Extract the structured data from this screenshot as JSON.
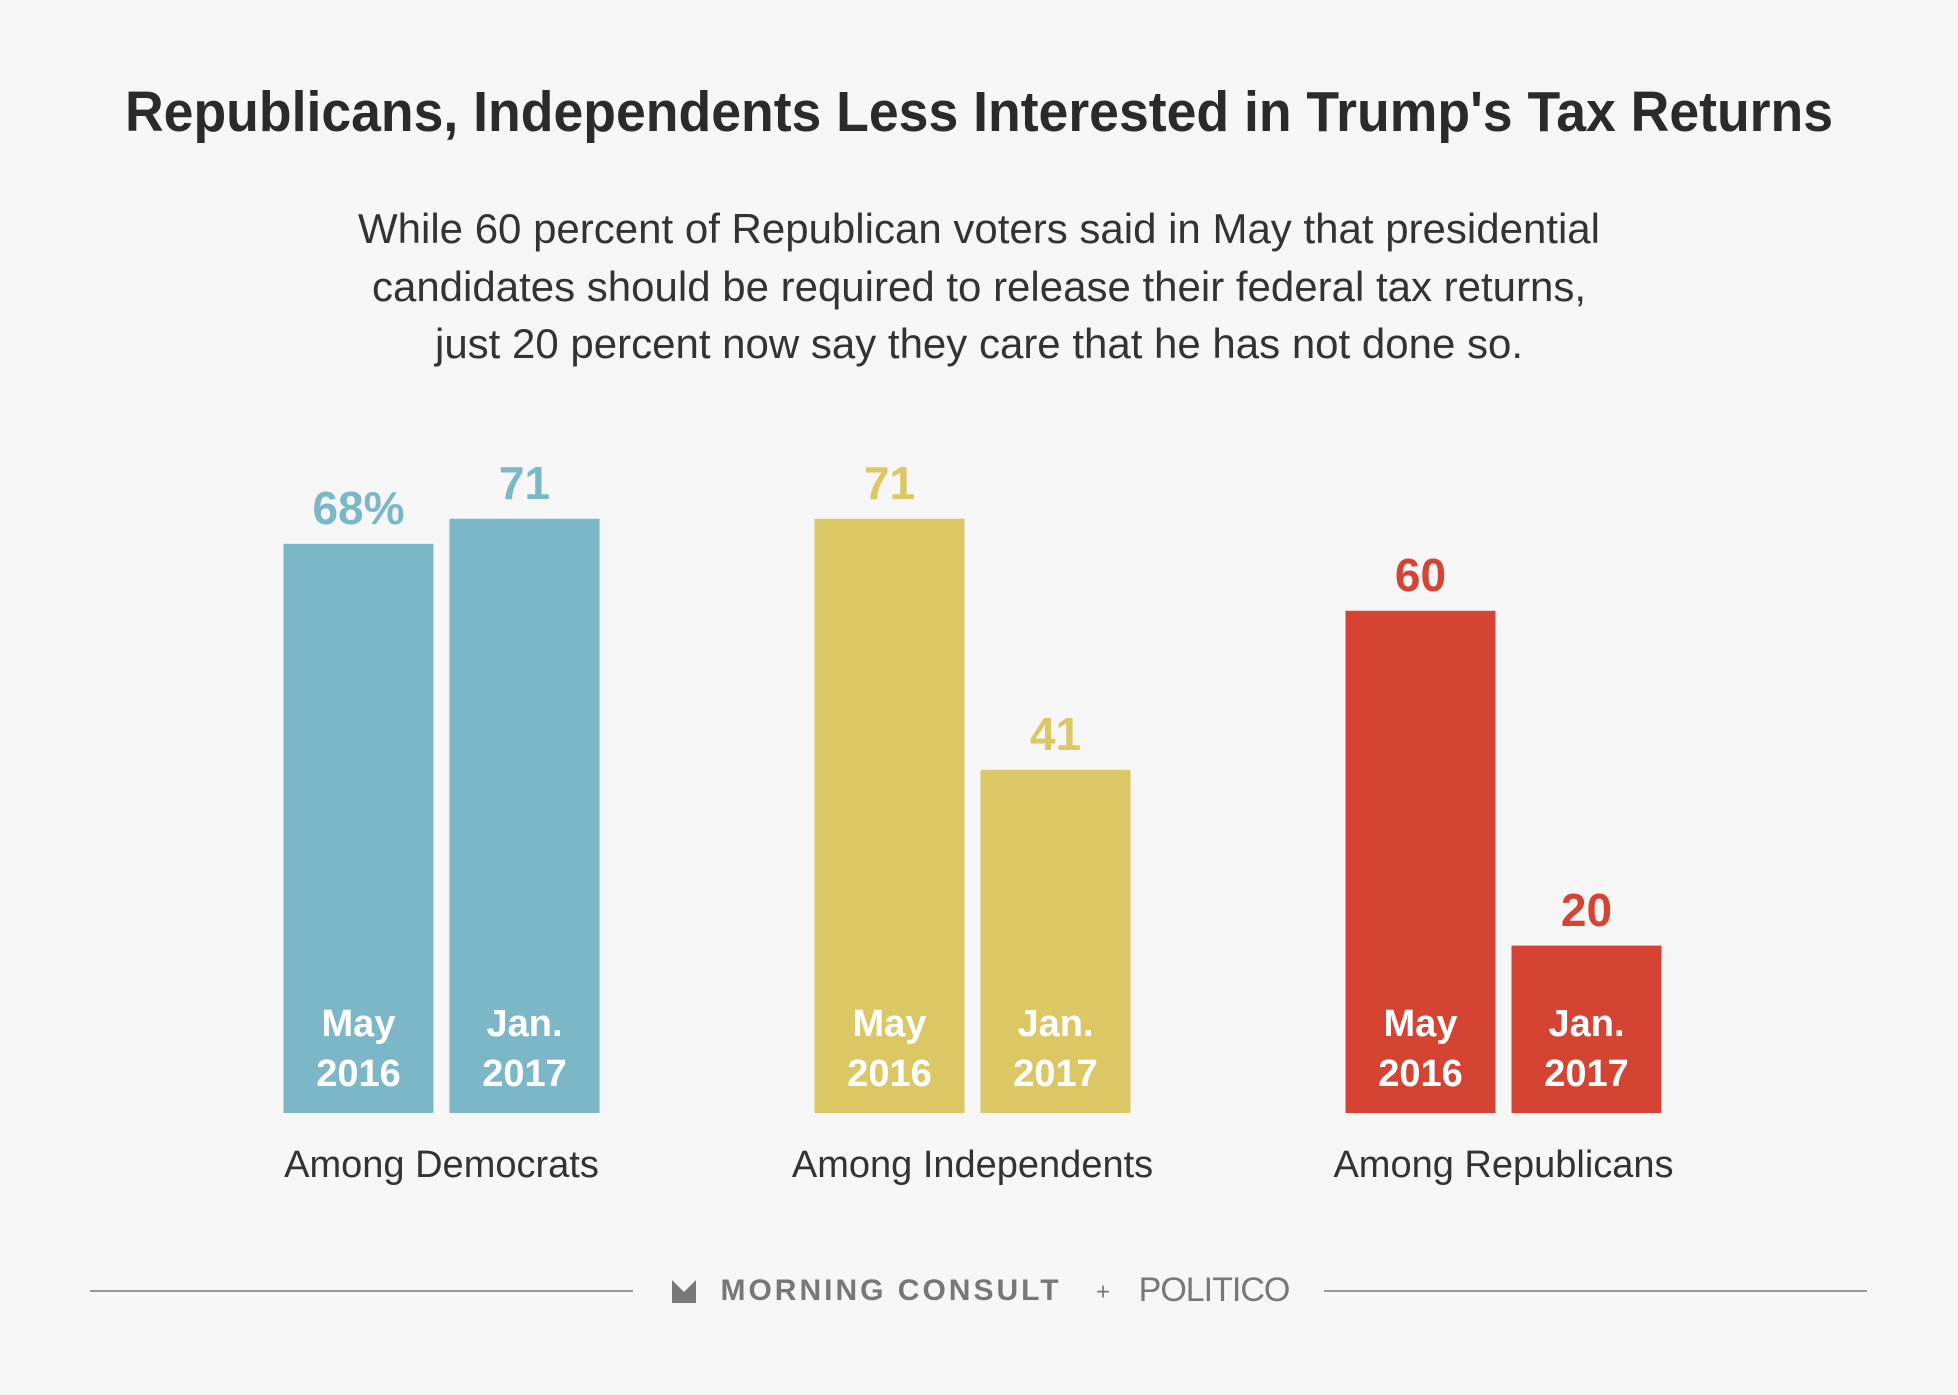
{
  "chart_data": {
    "type": "grouped-bar",
    "title": "Republicans, Independents Less Interested in Trump's Tax Returns",
    "subtitle": [
      "While 60 percent of Republican voters said in May that presidential",
      "candidates should be required to release their federal tax returns,",
      "just 20 percent now say they care that he has not done so."
    ],
    "bar_labels": [
      [
        "May",
        "2016"
      ],
      [
        "Jan.",
        "2017"
      ]
    ],
    "groups": [
      {
        "name": "Among Democrats",
        "color": "#7bb7c7",
        "values": [
          68,
          71
        ],
        "value_labels": [
          "68%",
          "71"
        ]
      },
      {
        "name": "Among Independents",
        "color": "#dbc764",
        "values": [
          71,
          41
        ]
      },
      {
        "name": "Among Republicans",
        "color": "#d54333",
        "values": [
          60,
          20
        ]
      }
    ],
    "footer": {
      "brand": "MORNING CONSULT",
      "plus": "+",
      "partner": "POLITICO"
    }
  }
}
